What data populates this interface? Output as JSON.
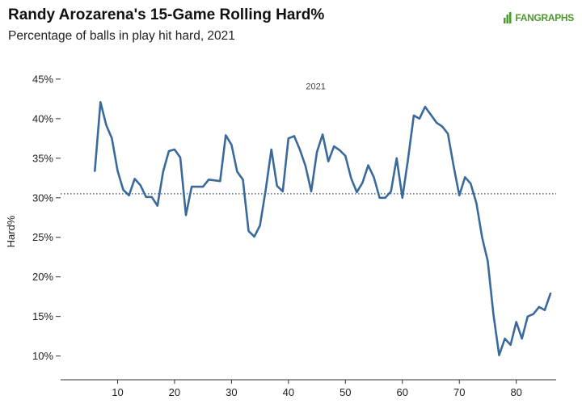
{
  "header": {
    "title": "Randy Arozarena's 15-Game Rolling Hard%",
    "subtitle": "Percentage of balls in play hit hard, 2021",
    "brand": "FANGRAPHS"
  },
  "chart_data": {
    "type": "line",
    "title": "Randy Arozarena's 15-Game Rolling Hard%",
    "subtitle": "Percentage of balls in play hit hard, 2021",
    "xlabel": "",
    "ylabel": "Hard%",
    "xlim": [
      0,
      87
    ],
    "ylim": [
      0.07,
      0.455
    ],
    "x_ticks": [
      10,
      20,
      30,
      40,
      50,
      60,
      70,
      80
    ],
    "y_ticks": [
      0.1,
      0.15,
      0.2,
      0.25,
      0.3,
      0.35,
      0.4,
      0.45
    ],
    "y_tick_labels": [
      "10%",
      "15%",
      "20%",
      "25%",
      "30%",
      "35%",
      "40%",
      "45%"
    ],
    "reference_line": {
      "y": 0.305,
      "style": "dotted"
    },
    "annotation": "2021",
    "grid": false,
    "series": [
      {
        "color": "#3a6a9c",
        "x": [
          6,
          7,
          8,
          9,
          10,
          11,
          12,
          13,
          14,
          15,
          16,
          17,
          18,
          19,
          20,
          21,
          22,
          23,
          24,
          25,
          26,
          27,
          28,
          29,
          30,
          31,
          32,
          33,
          34,
          35,
          36,
          37,
          38,
          39,
          40,
          41,
          42,
          43,
          44,
          45,
          46,
          47,
          48,
          49,
          50,
          51,
          52,
          53,
          54,
          55,
          56,
          57,
          58,
          59,
          60,
          61,
          62,
          63,
          64,
          65,
          66,
          67,
          68,
          69,
          70,
          71,
          72,
          73,
          74,
          75,
          76,
          77,
          78,
          79,
          80,
          81,
          82,
          83,
          84,
          85,
          86
        ],
        "y": [
          0.334,
          0.421,
          0.392,
          0.375,
          0.334,
          0.31,
          0.303,
          0.324,
          0.316,
          0.301,
          0.301,
          0.29,
          0.333,
          0.359,
          0.361,
          0.351,
          0.278,
          0.314,
          0.314,
          0.314,
          0.323,
          0.322,
          0.321,
          0.379,
          0.367,
          0.333,
          0.323,
          0.258,
          0.251,
          0.265,
          0.31,
          0.361,
          0.315,
          0.308,
          0.375,
          0.378,
          0.361,
          0.34,
          0.308,
          0.358,
          0.38,
          0.346,
          0.365,
          0.36,
          0.353,
          0.325,
          0.307,
          0.319,
          0.341,
          0.326,
          0.3,
          0.3,
          0.308,
          0.35,
          0.3,
          0.349,
          0.404,
          0.4,
          0.415,
          0.405,
          0.395,
          0.39,
          0.381,
          0.34,
          0.303,
          0.326,
          0.318,
          0.293,
          0.25,
          0.22,
          0.152,
          0.101,
          0.122,
          0.114,
          0.143,
          0.122,
          0.15,
          0.153,
          0.162,
          0.158,
          0.179
        ]
      }
    ]
  }
}
